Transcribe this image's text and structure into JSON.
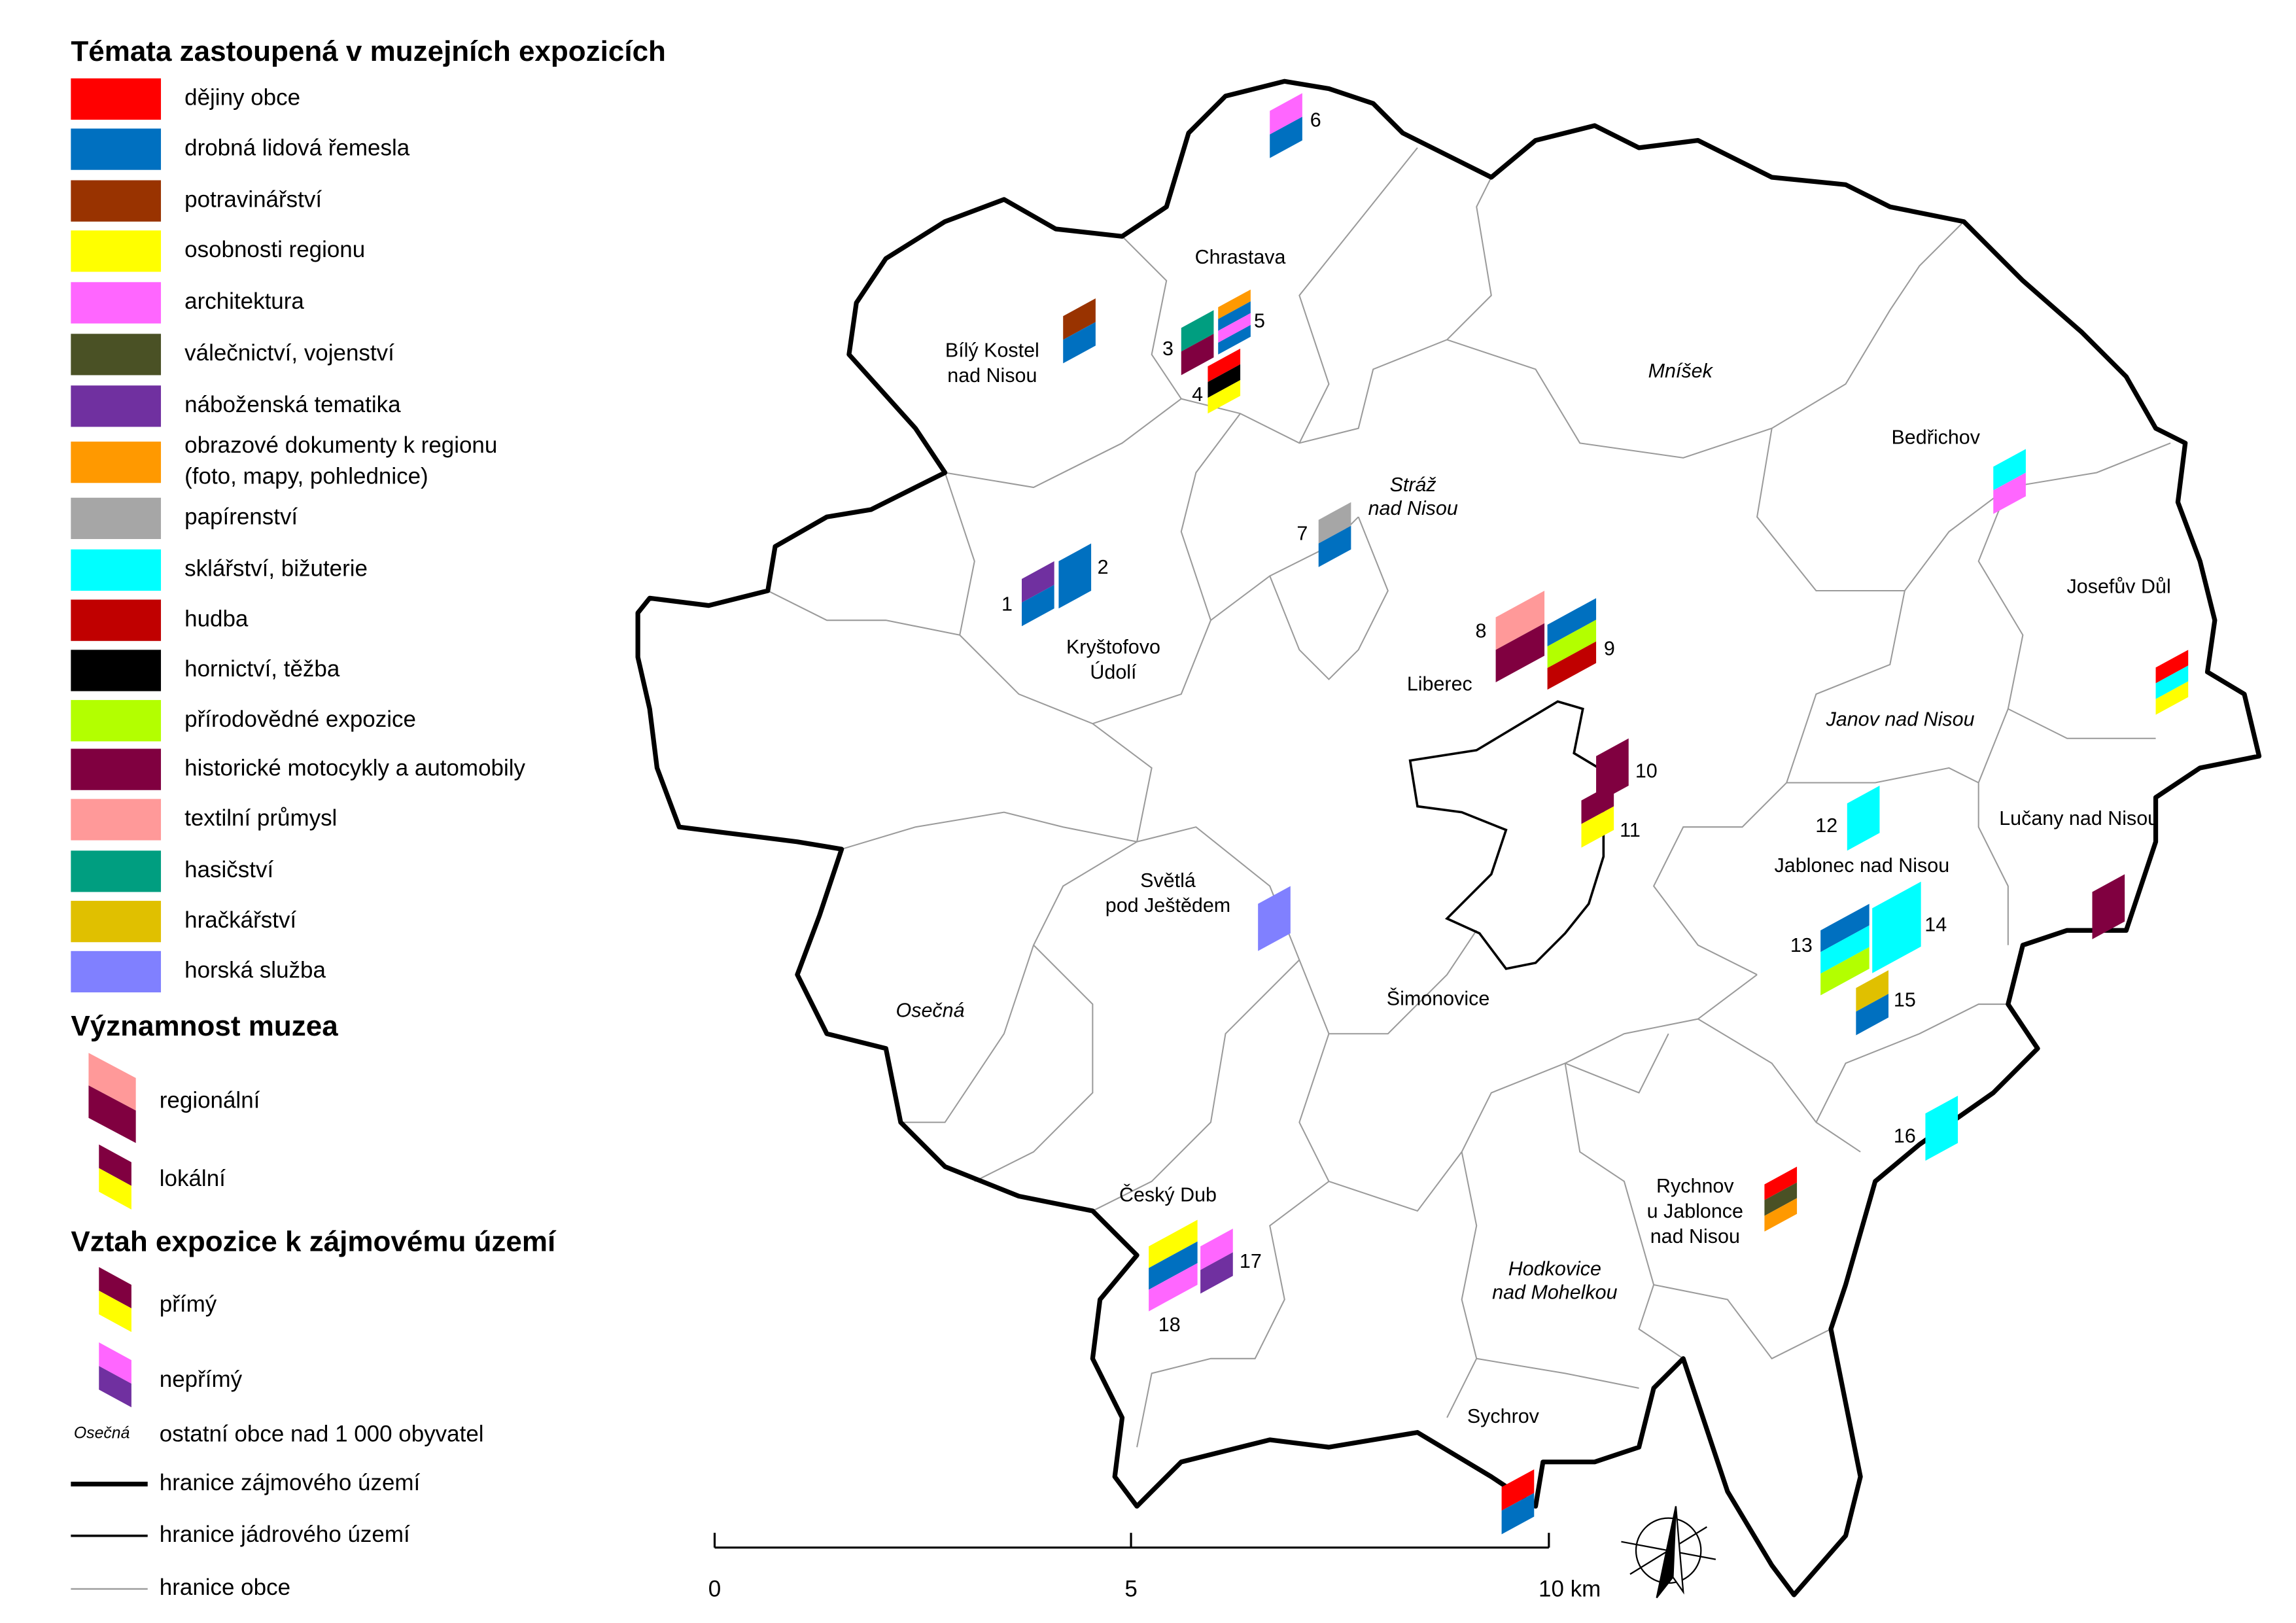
{
  "legend": {
    "themes_title": "Témata zastoupená v muzejních expozicích",
    "themes": [
      {
        "label": [
          "dějiny obce"
        ],
        "color": "#ff0000"
      },
      {
        "label": [
          "drobná lidová řemesla"
        ],
        "color": "#0070c0"
      },
      {
        "label": [
          "potravinářství"
        ],
        "color": "#993300"
      },
      {
        "label": [
          "osobnosti regionu"
        ],
        "color": "#ffff00"
      },
      {
        "label": [
          "architektura"
        ],
        "color": "#ff66ff"
      },
      {
        "label": [
          "válečnictví, vojenství"
        ],
        "color": "#4a5125"
      },
      {
        "label": [
          "náboženská tematika"
        ],
        "color": "#7030a0"
      },
      {
        "label": [
          "obrazové dokumenty k regionu",
          "(foto, mapy, pohlednice)"
        ],
        "color": "#ff9900"
      },
      {
        "label": [
          "papírenství"
        ],
        "color": "#a6a6a6"
      },
      {
        "label": [
          "sklářství, bižuterie"
        ],
        "color": "#00ffff"
      },
      {
        "label": [
          "hudba"
        ],
        "color": "#c00000"
      },
      {
        "label": [
          "hornictví, těžba"
        ],
        "color": "#000000"
      },
      {
        "label": [
          "přírodovědné expozice"
        ],
        "color": "#b3ff00"
      },
      {
        "label": [
          "historické motocykly a automobily"
        ],
        "color": "#800040"
      },
      {
        "label": [
          "textilní průmysl"
        ],
        "color": "#ff9999"
      },
      {
        "label": [
          "hasičství"
        ],
        "color": "#009e80"
      },
      {
        "label": [
          "hračkářství"
        ],
        "color": "#e0c000"
      },
      {
        "label": [
          "horská služba"
        ],
        "color": "#8080ff"
      }
    ],
    "significance_title": "Významnost muzea",
    "significance": [
      "regionální",
      "lokální"
    ],
    "relation_title": "Vztah expozice k zájmovému území",
    "relation": [
      "přímý",
      "nepřímý"
    ],
    "town_sample": "Osečná",
    "town_sample_text": "ostatní obce nad 1 000 obyvatel",
    "lines": [
      "hranice zájmového území",
      "hranice jádrového území",
      "hranice obce"
    ]
  },
  "towns": [
    {
      "lines": [
        "Chrastava"
      ]
    },
    {
      "lines": [
        "Bílý Kostel",
        "nad Nisou"
      ]
    },
    {
      "lines": [
        "Mníšek"
      ],
      "italic": true
    },
    {
      "lines": [
        "Bedřichov"
      ]
    },
    {
      "lines": [
        "Stráž",
        "nad Nisou"
      ],
      "italic": true
    },
    {
      "lines": [
        "Kryštofovo",
        "Údolí"
      ]
    },
    {
      "lines": [
        "Liberec"
      ]
    },
    {
      "lines": [
        "Josefův Důl"
      ]
    },
    {
      "lines": [
        "Janov nad Nisou"
      ],
      "italic": true
    },
    {
      "lines": [
        "Jablonec nad Nisou"
      ]
    },
    {
      "lines": [
        "Lučany nad Nisou"
      ]
    },
    {
      "lines": [
        "Světlá",
        "pod Ještědem"
      ]
    },
    {
      "lines": [
        "Osečná"
      ],
      "italic": true
    },
    {
      "lines": [
        "Šimonovice"
      ]
    },
    {
      "lines": [
        "Český Dub"
      ]
    },
    {
      "lines": [
        "Hodkovice",
        "nad Mohelkou"
      ],
      "italic": true
    },
    {
      "lines": [
        "Rychnov",
        "u Jablonce",
        "nad Nisou"
      ]
    },
    {
      "lines": [
        "Sychrov"
      ]
    }
  ],
  "museums": [
    {
      "label": "6",
      "size": "small",
      "segments": [
        "#ff66ff",
        "#0070c0"
      ]
    },
    {
      "size": "small",
      "segments": [
        "#993300",
        "#0070c0"
      ]
    },
    {
      "label": "3",
      "size": "small",
      "segments": [
        "#009e80",
        "#800040"
      ]
    },
    {
      "label": "5",
      "size": "small",
      "segments": [
        "#ff9900",
        "#0070c0",
        "#ff66ff",
        "#0070c0"
      ]
    },
    {
      "label": "4",
      "size": "small",
      "segments": [
        "#ff0000",
        "#000000",
        "#ffff00"
      ]
    },
    {
      "label": "7",
      "size": "small",
      "segments": [
        "#a6a6a6",
        "#0070c0"
      ]
    },
    {
      "label": "1",
      "size": "small",
      "segments": [
        "#7030a0",
        "#0070c0"
      ]
    },
    {
      "label": "2",
      "size": "small",
      "segments": [
        "#0070c0"
      ]
    },
    {
      "label": "8",
      "size": "large",
      "segments": [
        "#ff9999",
        "#800040"
      ]
    },
    {
      "label": "9",
      "size": "large",
      "segments": [
        "#0070c0",
        "#b3ff00",
        "#c00000"
      ]
    },
    {
      "label": "10",
      "size": "small",
      "segments": [
        "#800040"
      ]
    },
    {
      "label": "11",
      "size": "small",
      "segments": [
        "#800040",
        "#ffff00"
      ]
    },
    {
      "size": "small",
      "segments": [
        "#00ffff",
        "#ff66ff"
      ]
    },
    {
      "size": "small",
      "segments": [
        "#ff0000",
        "#00ffff",
        "#ffff00"
      ]
    },
    {
      "label": "12",
      "size": "small",
      "segments": [
        "#00ffff"
      ]
    },
    {
      "label": "13",
      "size": "large",
      "segments": [
        "#0070c0",
        "#00ffff",
        "#b3ff00"
      ]
    },
    {
      "label": "14",
      "size": "large",
      "segments": [
        "#00ffff"
      ]
    },
    {
      "label": "15",
      "size": "small",
      "segments": [
        "#e0c000",
        "#0070c0"
      ]
    },
    {
      "size": "small",
      "segments": [
        "#800040"
      ]
    },
    {
      "label": "16",
      "size": "small",
      "segments": [
        "#00ffff"
      ]
    },
    {
      "size": "small",
      "segments": [
        "#ff0000",
        "#4a5125",
        "#ff9900"
      ]
    },
    {
      "size": "small",
      "segments": [
        "#8080ff"
      ]
    },
    {
      "label": "17",
      "size": "small",
      "segments": [
        "#ff66ff",
        "#7030a0"
      ]
    },
    {
      "label": "18",
      "size": "large",
      "segments": [
        "#ffff00",
        "#0070c0",
        "#ff66ff"
      ]
    },
    {
      "size": "small",
      "segments": [
        "#ff0000",
        "#0070c0"
      ]
    }
  ],
  "scale_bar": [
    "0",
    "5",
    "10 km"
  ]
}
